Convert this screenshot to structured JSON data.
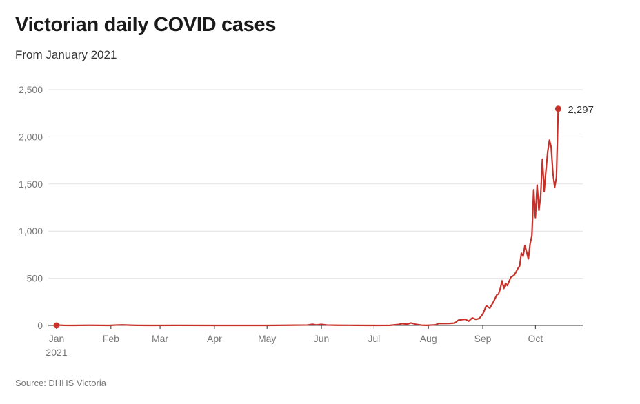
{
  "header": {
    "title": "Victorian daily COVID cases",
    "subtitle": "From January 2021"
  },
  "footer": {
    "source": "Source: DHHS Victoria"
  },
  "chart_data": {
    "type": "line",
    "title": "Victorian daily COVID cases",
    "subtitle": "From January 2021",
    "xlabel": "",
    "ylabel": "",
    "ylim": [
      0,
      2500
    ],
    "y_ticks": [
      {
        "value": 0,
        "label": "0"
      },
      {
        "value": 500,
        "label": "500"
      },
      {
        "value": 1000,
        "label": "1,000"
      },
      {
        "value": 1500,
        "label": "1,500"
      },
      {
        "value": 2000,
        "label": "2,000"
      },
      {
        "value": 2500,
        "label": "2,500"
      }
    ],
    "x_ticks": [
      {
        "date": "2021-01-01",
        "label": "Jan",
        "sublabel": "2021"
      },
      {
        "date": "2021-02-01",
        "label": "Feb"
      },
      {
        "date": "2021-03-01",
        "label": "Mar"
      },
      {
        "date": "2021-04-01",
        "label": "Apr"
      },
      {
        "date": "2021-05-01",
        "label": "May"
      },
      {
        "date": "2021-06-01",
        "label": "Jun"
      },
      {
        "date": "2021-07-01",
        "label": "Jul"
      },
      {
        "date": "2021-08-01",
        "label": "Aug"
      },
      {
        "date": "2021-09-01",
        "label": "Sep"
      },
      {
        "date": "2021-10-01",
        "label": "Oct"
      }
    ],
    "xlim": [
      "2021-01-01",
      "2021-10-28"
    ],
    "grid": true,
    "line_color": "#c8312a",
    "series": [
      {
        "points": [
          [
            "2021-01-01",
            0
          ],
          [
            "2021-01-03",
            3
          ],
          [
            "2021-01-05",
            1
          ],
          [
            "2021-01-10",
            0
          ],
          [
            "2021-01-20",
            2
          ],
          [
            "2021-01-31",
            0
          ],
          [
            "2021-02-05",
            5
          ],
          [
            "2021-02-08",
            6
          ],
          [
            "2021-02-12",
            3
          ],
          [
            "2021-02-16",
            1
          ],
          [
            "2021-02-25",
            0
          ],
          [
            "2021-03-10",
            1
          ],
          [
            "2021-04-01",
            0
          ],
          [
            "2021-05-01",
            0
          ],
          [
            "2021-05-12",
            2
          ],
          [
            "2021-05-24",
            4
          ],
          [
            "2021-05-27",
            12
          ],
          [
            "2021-05-29",
            5
          ],
          [
            "2021-06-01",
            11
          ],
          [
            "2021-06-04",
            4
          ],
          [
            "2021-06-10",
            2
          ],
          [
            "2021-06-20",
            1
          ],
          [
            "2021-07-01",
            0
          ],
          [
            "2021-07-10",
            1
          ],
          [
            "2021-07-15",
            10
          ],
          [
            "2021-07-17",
            19
          ],
          [
            "2021-07-20",
            13
          ],
          [
            "2021-07-22",
            26
          ],
          [
            "2021-07-25",
            11
          ],
          [
            "2021-07-28",
            3
          ],
          [
            "2021-07-31",
            1
          ],
          [
            "2021-08-05",
            6
          ],
          [
            "2021-08-07",
            21
          ],
          [
            "2021-08-10",
            20
          ],
          [
            "2021-08-13",
            21
          ],
          [
            "2021-08-16",
            25
          ],
          [
            "2021-08-18",
            55
          ],
          [
            "2021-08-20",
            61
          ],
          [
            "2021-08-22",
            65
          ],
          [
            "2021-08-24",
            45
          ],
          [
            "2021-08-26",
            80
          ],
          [
            "2021-08-28",
            64
          ],
          [
            "2021-08-30",
            73
          ],
          [
            "2021-09-01",
            120
          ],
          [
            "2021-09-03",
            208
          ],
          [
            "2021-09-05",
            183
          ],
          [
            "2021-09-07",
            246
          ],
          [
            "2021-09-09",
            324
          ],
          [
            "2021-09-10",
            334
          ],
          [
            "2021-09-11",
            392
          ],
          [
            "2021-09-12",
            473
          ],
          [
            "2021-09-13",
            392
          ],
          [
            "2021-09-14",
            445
          ],
          [
            "2021-09-15",
            423
          ],
          [
            "2021-09-17",
            510
          ],
          [
            "2021-09-19",
            535
          ],
          [
            "2021-09-20",
            567
          ],
          [
            "2021-09-21",
            603
          ],
          [
            "2021-09-22",
            628
          ],
          [
            "2021-09-23",
            766
          ],
          [
            "2021-09-24",
            733
          ],
          [
            "2021-09-25",
            847
          ],
          [
            "2021-09-26",
            779
          ],
          [
            "2021-09-27",
            705
          ],
          [
            "2021-09-28",
            867
          ],
          [
            "2021-09-29",
            950
          ],
          [
            "2021-09-30",
            1438
          ],
          [
            "2021-10-01",
            1143
          ],
          [
            "2021-10-02",
            1488
          ],
          [
            "2021-10-03",
            1220
          ],
          [
            "2021-10-04",
            1377
          ],
          [
            "2021-10-05",
            1763
          ],
          [
            "2021-10-06",
            1420
          ],
          [
            "2021-10-07",
            1638
          ],
          [
            "2021-10-08",
            1838
          ],
          [
            "2021-10-09",
            1965
          ],
          [
            "2021-10-10",
            1890
          ],
          [
            "2021-10-11",
            1612
          ],
          [
            "2021-10-12",
            1466
          ],
          [
            "2021-10-13",
            1571
          ],
          [
            "2021-10-14",
            2297
          ]
        ]
      }
    ],
    "annotations": [
      {
        "date": "2021-10-14",
        "value": 2297,
        "label": "2,297",
        "marker": true
      },
      {
        "date": "2021-01-01",
        "value": 0,
        "marker": true
      }
    ]
  }
}
